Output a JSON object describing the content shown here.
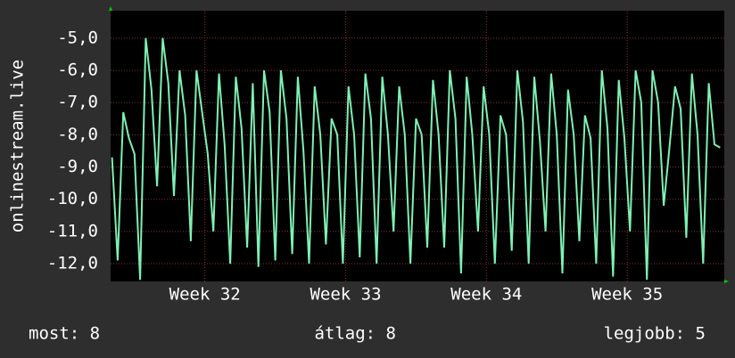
{
  "chart_data": {
    "type": "line",
    "y_label": "onlinestream.live",
    "x": [
      31.34,
      31.38,
      31.42,
      31.46,
      31.5,
      31.54,
      31.58,
      31.62,
      31.66,
      31.7,
      31.74,
      31.78,
      31.82,
      31.86,
      31.9,
      31.94,
      31.98,
      32.02,
      32.06,
      32.1,
      32.14,
      32.18,
      32.22,
      32.26,
      32.3,
      32.34,
      32.38,
      32.42,
      32.46,
      32.5,
      32.54,
      32.58,
      32.62,
      32.66,
      32.7,
      32.74,
      32.78,
      32.82,
      32.86,
      32.9,
      32.94,
      32.98,
      33.02,
      33.06,
      33.1,
      33.14,
      33.18,
      33.22,
      33.26,
      33.3,
      33.34,
      33.38,
      33.42,
      33.46,
      33.5,
      33.54,
      33.58,
      33.62,
      33.66,
      33.7,
      33.74,
      33.78,
      33.82,
      33.86,
      33.9,
      33.94,
      33.98,
      34.02,
      34.06,
      34.1,
      34.14,
      34.18,
      34.22,
      34.26,
      34.3,
      34.34,
      34.38,
      34.42,
      34.46,
      34.5,
      34.54,
      34.58,
      34.62,
      34.66,
      34.7,
      34.74,
      34.78,
      34.82,
      34.86,
      34.9,
      34.94,
      34.98,
      35.02,
      35.06,
      35.1,
      35.14,
      35.18,
      35.22,
      35.26,
      35.3,
      35.34,
      35.38,
      35.42,
      35.46,
      35.5,
      35.54,
      35.58,
      35.62,
      35.66
    ],
    "series": [
      {
        "color": "#7ff0b4",
        "values": [
          -8.7,
          -11.9,
          -7.3,
          -8.1,
          -8.6,
          -12.5,
          -5.0,
          -6.6,
          -9.6,
          -5.0,
          -6.4,
          -9.9,
          -6.0,
          -7.4,
          -11.3,
          -6.0,
          -7.3,
          -8.6,
          -11.0,
          -6.1,
          -8.3,
          -12.0,
          -6.2,
          -7.8,
          -11.5,
          -6.4,
          -12.1,
          -6.0,
          -7.3,
          -11.9,
          -6.0,
          -7.5,
          -11.7,
          -6.2,
          -8.5,
          -12.0,
          -6.5,
          -8.0,
          -11.4,
          -7.5,
          -8.0,
          -12.0,
          -6.5,
          -8.0,
          -11.8,
          -6.1,
          -7.5,
          -12.0,
          -6.2,
          -8.0,
          -11.0,
          -6.5,
          -8.0,
          -12.0,
          -7.5,
          -8.0,
          -11.5,
          -6.3,
          -8.0,
          -11.5,
          -6.0,
          -7.5,
          -12.3,
          -6.2,
          -8.0,
          -11.0,
          -6.5,
          -8.0,
          -12.0,
          -7.4,
          -8.0,
          -11.6,
          -6.0,
          -7.6,
          -12.0,
          -6.2,
          -8.2,
          -11.0,
          -6.1,
          -8.0,
          -12.3,
          -6.6,
          -8.0,
          -11.3,
          -7.4,
          -8.1,
          -12.0,
          -6.0,
          -7.8,
          -12.4,
          -6.3,
          -8.1,
          -11.0,
          -6.0,
          -7.0,
          -12.5,
          -6.0,
          -7.0,
          -10.2,
          -8.4,
          -6.5,
          -7.2,
          -11.2,
          -6.1,
          -8.0,
          -12.0,
          -6.4,
          -8.3,
          -8.4
        ]
      }
    ],
    "xlim": [
      31.33,
      35.69
    ],
    "xticks": [
      {
        "value": 32,
        "label": "Week 32"
      },
      {
        "value": 33,
        "label": "Week 33"
      },
      {
        "value": 34,
        "label": "Week 34"
      },
      {
        "value": 35,
        "label": "Week 35"
      }
    ],
    "ylim": [
      -12.55,
      -4.15
    ],
    "yticks": [
      {
        "value": -12,
        "label": "-12,0"
      },
      {
        "value": -11,
        "label": "-11,0"
      },
      {
        "value": -10,
        "label": "-10,0"
      },
      {
        "value": -9,
        "label": "-9,0"
      },
      {
        "value": -8,
        "label": "-8,0"
      },
      {
        "value": -7,
        "label": "-7,0"
      },
      {
        "value": -6,
        "label": "-6,0"
      },
      {
        "value": -5,
        "label": "-5,0"
      }
    ],
    "grid": true,
    "footer": [
      "most: 8",
      "átlag: 8",
      "legjobb: 5"
    ]
  }
}
